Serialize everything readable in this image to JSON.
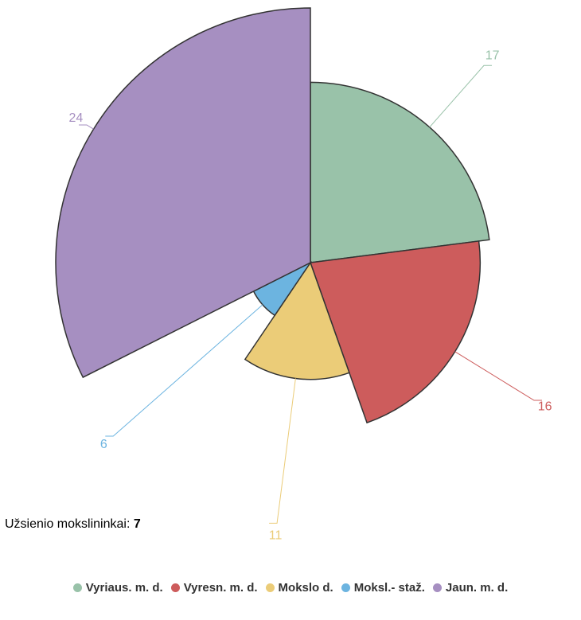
{
  "chart_data": {
    "type": "pie",
    "rose": true,
    "categories": [
      "Vyriaus. m. d.",
      "Vyresn. m. d.",
      "Mokslo d.",
      "Moksl.- staž.",
      "Jaun. m. d."
    ],
    "values": [
      17,
      16,
      11,
      6,
      24
    ],
    "colors": [
      "#99c2a9",
      "#cd5c5c",
      "#ebcc78",
      "#6cb4e0",
      "#a68fc1"
    ],
    "note": {
      "label": "Užsienio mokslininkai:",
      "value": 7
    }
  }
}
